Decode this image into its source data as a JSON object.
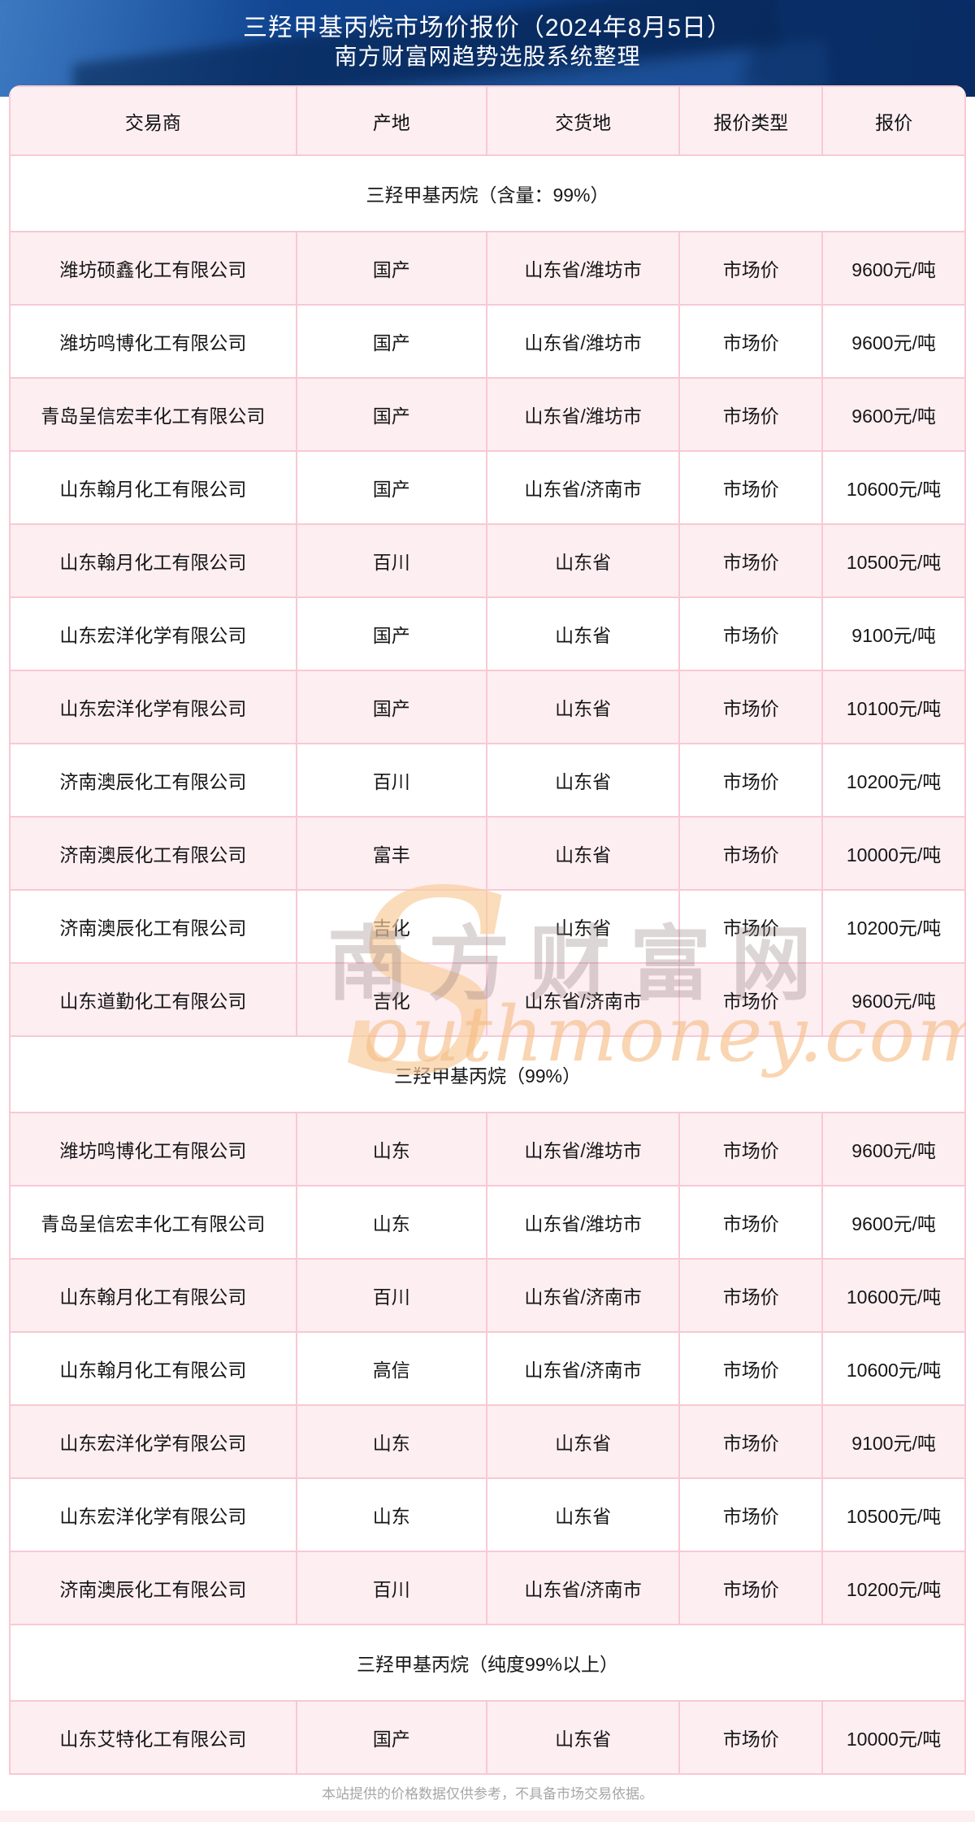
{
  "header": {
    "title_line1": "三羟甲基丙烷市场价报价（2024年8月5日）",
    "title_line2": "南方财富网趋势选股系统整理"
  },
  "table": {
    "columns": [
      "交易商",
      "产地",
      "交货地",
      "报价类型",
      "报价"
    ],
    "sections": [
      {
        "title": "三羟甲基丙烷（含量：99%）",
        "rows": [
          [
            "潍坊硕鑫化工有限公司",
            "国产",
            "山东省/潍坊市",
            "市场价",
            "9600元/吨"
          ],
          [
            "潍坊鸣博化工有限公司",
            "国产",
            "山东省/潍坊市",
            "市场价",
            "9600元/吨"
          ],
          [
            "青岛呈信宏丰化工有限公司",
            "国产",
            "山东省/潍坊市",
            "市场价",
            "9600元/吨"
          ],
          [
            "山东翰月化工有限公司",
            "国产",
            "山东省/济南市",
            "市场价",
            "10600元/吨"
          ],
          [
            "山东翰月化工有限公司",
            "百川",
            "山东省",
            "市场价",
            "10500元/吨"
          ],
          [
            "山东宏洋化学有限公司",
            "国产",
            "山东省",
            "市场价",
            "9100元/吨"
          ],
          [
            "山东宏洋化学有限公司",
            "国产",
            "山东省",
            "市场价",
            "10100元/吨"
          ],
          [
            "济南澳辰化工有限公司",
            "百川",
            "山东省",
            "市场价",
            "10200元/吨"
          ],
          [
            "济南澳辰化工有限公司",
            "富丰",
            "山东省",
            "市场价",
            "10000元/吨"
          ],
          [
            "济南澳辰化工有限公司",
            "吉化",
            "山东省",
            "市场价",
            "10200元/吨"
          ],
          [
            "山东道勤化工有限公司",
            "吉化",
            "山东省/济南市",
            "市场价",
            "9600元/吨"
          ]
        ]
      },
      {
        "title": "三羟甲基丙烷（99%）",
        "rows": [
          [
            "潍坊鸣博化工有限公司",
            "山东",
            "山东省/潍坊市",
            "市场价",
            "9600元/吨"
          ],
          [
            "青岛呈信宏丰化工有限公司",
            "山东",
            "山东省/潍坊市",
            "市场价",
            "9600元/吨"
          ],
          [
            "山东翰月化工有限公司",
            "百川",
            "山东省/济南市",
            "市场价",
            "10600元/吨"
          ],
          [
            "山东翰月化工有限公司",
            "高信",
            "山东省/济南市",
            "市场价",
            "10600元/吨"
          ],
          [
            "山东宏洋化学有限公司",
            "山东",
            "山东省",
            "市场价",
            "9100元/吨"
          ],
          [
            "山东宏洋化学有限公司",
            "山东",
            "山东省",
            "市场价",
            "10500元/吨"
          ],
          [
            "济南澳辰化工有限公司",
            "百川",
            "山东省/济南市",
            "市场价",
            "10200元/吨"
          ]
        ]
      },
      {
        "title": "三羟甲基丙烷（纯度99%以上）",
        "rows": [
          [
            "山东艾特化工有限公司",
            "国产",
            "山东省",
            "市场价",
            "10000元/吨"
          ]
        ]
      }
    ]
  },
  "watermark": {
    "swoosh": "S",
    "brand": "南方财富网",
    "domain": "outhmoney.com"
  },
  "footer": {
    "disclaimer": "本站提供的价格数据仅供参考，不具备市场交易依据。"
  },
  "colors": {
    "header_blue": "#0d3a80",
    "row_pink": "#fdeef2",
    "border_pink": "#f8c9d4",
    "watermark_orange": "#f6bc82",
    "footer_gray": "#a8a6a6"
  }
}
